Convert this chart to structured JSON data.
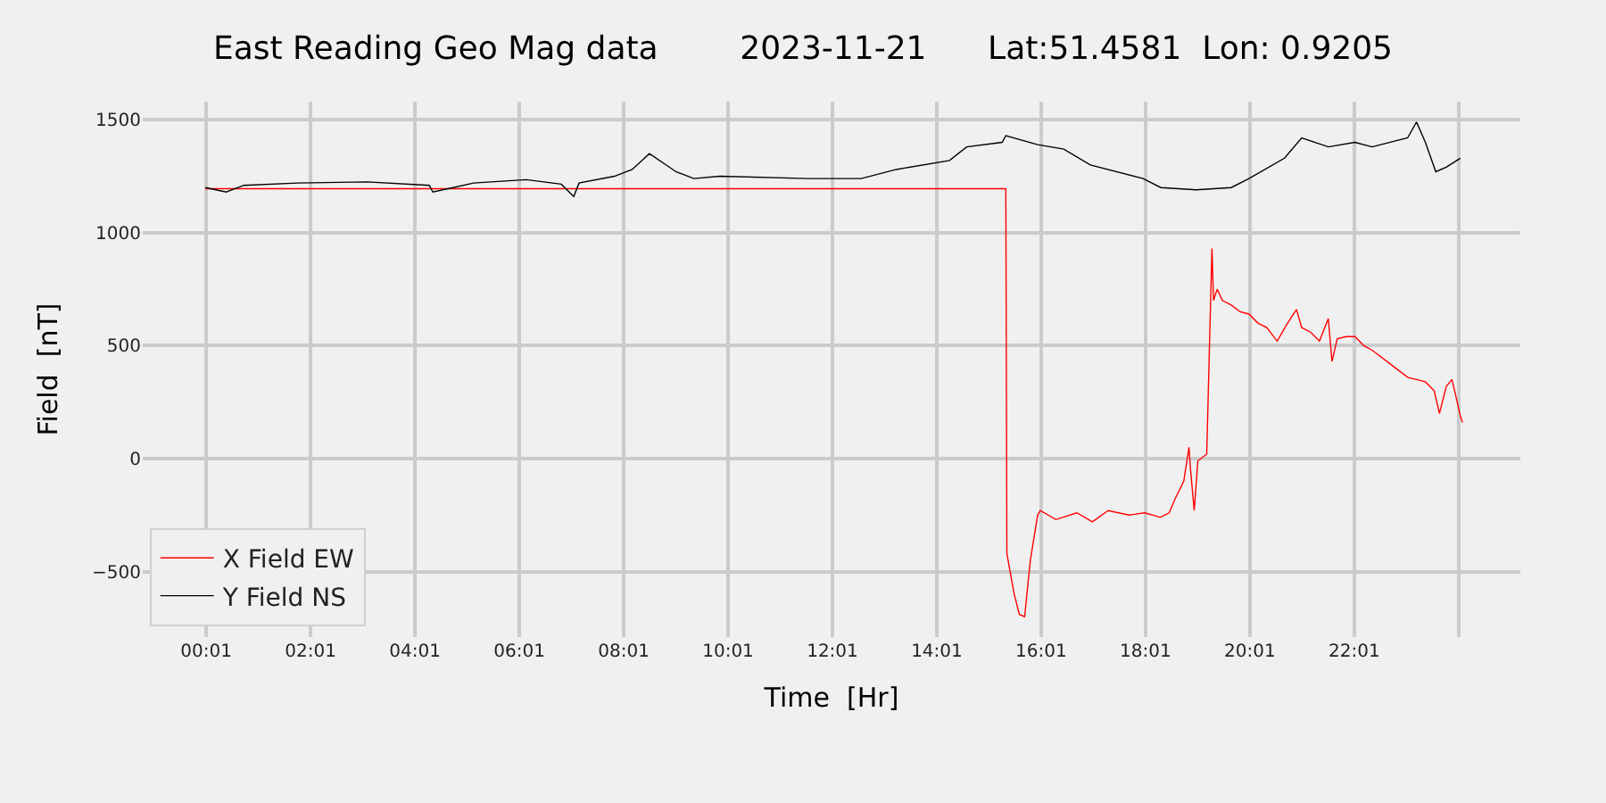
{
  "chart_data": {
    "type": "line",
    "title": "East Reading Geo Mag data        2023-11-21      Lat:51.4581  Lon: 0.9205",
    "xlabel": "Time  [Hr]",
    "ylabel": "Field  [nT]",
    "xlim": [
      -1.2,
      25.2
    ],
    "ylim": [
      -790,
      1580
    ],
    "xticks": [
      {
        "value": 0.0167,
        "label": "00:01"
      },
      {
        "value": 2.0167,
        "label": "02:01"
      },
      {
        "value": 4.0167,
        "label": "04:01"
      },
      {
        "value": 6.0167,
        "label": "06:01"
      },
      {
        "value": 8.0167,
        "label": "08:01"
      },
      {
        "value": 10.0167,
        "label": "10:01"
      },
      {
        "value": 12.0167,
        "label": "12:01"
      },
      {
        "value": 14.0167,
        "label": "14:01"
      },
      {
        "value": 16.0167,
        "label": "16:01"
      },
      {
        "value": 18.0167,
        "label": "18:01"
      },
      {
        "value": 20.0167,
        "label": "20:01"
      },
      {
        "value": 22.0167,
        "label": "22:01"
      },
      {
        "value": 24.0167,
        "label": null
      }
    ],
    "yticks": [
      {
        "value": -500,
        "label": "−500"
      },
      0,
      500,
      1000,
      1500
    ],
    "grid": true,
    "legend": "bottom left",
    "marker": "none",
    "line_style": "solid",
    "series": [
      {
        "name": "X Field EW",
        "color": "#ff0000",
        "x": [
          0,
          15.34,
          15.36,
          15.5,
          15.6,
          15.7,
          15.81,
          15.95,
          16.0,
          16.3,
          16.7,
          17.0,
          17.3,
          17.7,
          18.0,
          18.3,
          18.47,
          18.58,
          18.75,
          18.85,
          18.88,
          18.95,
          19.02,
          19.19,
          19.29,
          19.32,
          19.39,
          19.49,
          19.66,
          19.83,
          20.0,
          20.17,
          20.34,
          20.54,
          20.74,
          20.91,
          21.01,
          21.18,
          21.35,
          21.52,
          21.59,
          21.69,
          21.86,
          22.03,
          22.2,
          22.36,
          22.7,
          23.04,
          23.38,
          23.55,
          23.65,
          23.78,
          23.89,
          23.99,
          24.05,
          24.09
        ],
        "values": [
          1195,
          1195,
          -420,
          -600,
          -690,
          -700,
          -450,
          -250,
          -230,
          -270,
          -240,
          -280,
          -230,
          -250,
          -240,
          -260,
          -240,
          -180,
          -100,
          50,
          -50,
          -230,
          -10,
          20,
          930,
          700,
          750,
          700,
          680,
          650,
          640,
          600,
          580,
          520,
          600,
          660,
          580,
          560,
          520,
          620,
          430,
          530,
          540,
          540,
          500,
          480,
          420,
          360,
          340,
          300,
          200,
          320,
          350,
          250,
          190,
          160
        ]
      },
      {
        "name": "Y Field NS",
        "color": "#000000",
        "x": [
          0,
          0.4,
          0.74,
          1.76,
          3.1,
          4.29,
          4.36,
          5.14,
          6.15,
          6.82,
          7.06,
          7.16,
          7.84,
          8.18,
          8.51,
          9.02,
          9.36,
          9.86,
          11.55,
          12.57,
          13.24,
          14.26,
          14.59,
          15.27,
          15.34,
          15.95,
          16.45,
          16.96,
          17.97,
          18.31,
          18.99,
          19.66,
          20.0,
          20.68,
          21.01,
          21.52,
          22.03,
          22.36,
          23.04,
          23.21,
          23.38,
          23.58,
          23.78,
          24.05
        ],
        "values": [
          1200,
          1180,
          1210,
          1220,
          1225,
          1210,
          1180,
          1220,
          1235,
          1215,
          1160,
          1220,
          1250,
          1280,
          1350,
          1270,
          1240,
          1250,
          1240,
          1240,
          1280,
          1320,
          1380,
          1400,
          1430,
          1390,
          1370,
          1300,
          1240,
          1200,
          1190,
          1200,
          1240,
          1330,
          1420,
          1380,
          1400,
          1380,
          1420,
          1490,
          1400,
          1270,
          1290,
          1330
        ]
      }
    ]
  }
}
